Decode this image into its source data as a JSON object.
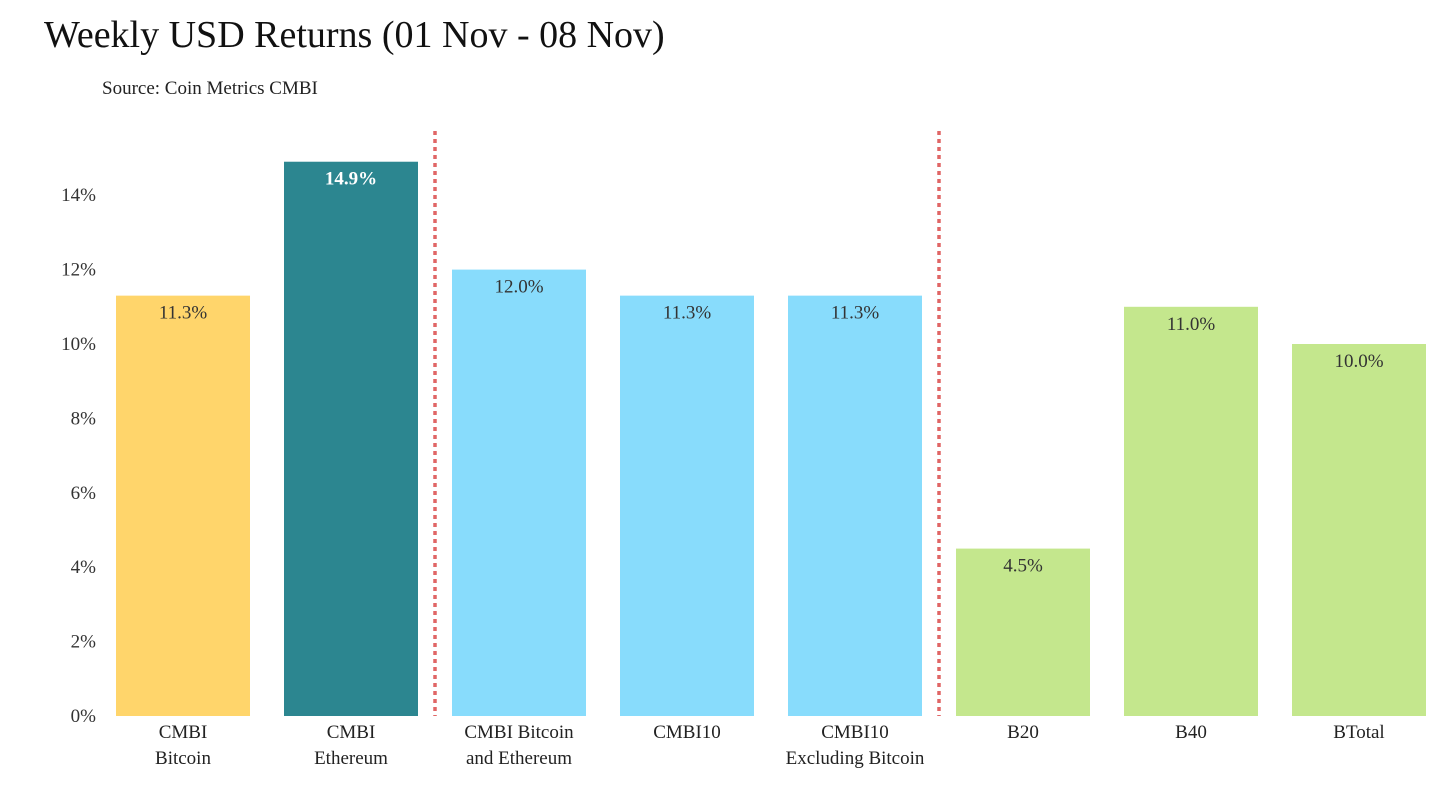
{
  "chart_data": {
    "type": "bar",
    "title": "Weekly USD Returns (01 Nov - 08 Nov)",
    "subtitle": "Source: Coin Metrics CMBI",
    "categories": [
      [
        "CMBI",
        "Bitcoin"
      ],
      [
        "CMBI",
        "Ethereum"
      ],
      [
        "CMBI Bitcoin",
        "and Ethereum"
      ],
      [
        "CMBI10"
      ],
      [
        "CMBI10",
        "Excluding Bitcoin"
      ],
      [
        "B20"
      ],
      [
        "B40"
      ],
      [
        "BTotal"
      ]
    ],
    "values": [
      11.3,
      14.9,
      12.0,
      11.3,
      11.3,
      4.5,
      11.0,
      10.0
    ],
    "data_labels": [
      "11.3%",
      "14.9%",
      "12.0%",
      "11.3%",
      "11.3%",
      "4.5%",
      "11.0%",
      "10.0%"
    ],
    "colors": [
      "#FFD56B",
      "#2C8690",
      "#88DCFC",
      "#88DCFC",
      "#88DCFC",
      "#C4E78D",
      "#C4E78D",
      "#C4E78D"
    ],
    "label_colors": [
      "#333333",
      "#ffffff",
      "#333333",
      "#333333",
      "#333333",
      "#333333",
      "#333333",
      "#333333"
    ],
    "yticks": [
      0,
      2,
      4,
      6,
      8,
      10,
      12,
      14
    ],
    "ytick_labels": [
      "0%",
      "2%",
      "4%",
      "6%",
      "8%",
      "10%",
      "12%",
      "14%"
    ],
    "ylim": [
      0,
      15.4
    ],
    "xlabel": "",
    "ylabel": "",
    "grid": false,
    "legend": "none",
    "separators_after_category": [
      1,
      4
    ],
    "separator_color": "#E06666"
  }
}
